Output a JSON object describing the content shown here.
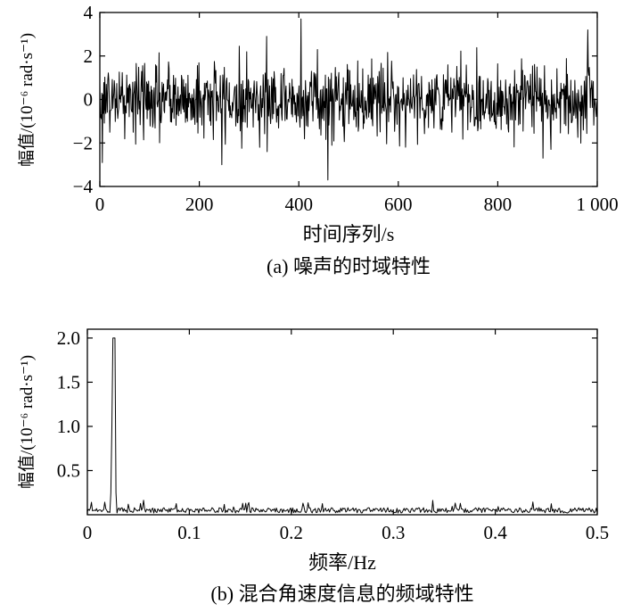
{
  "chart_data": [
    {
      "type": "line",
      "caption": "(a) 噪声的时域特性",
      "xlabel": "时间序列/s",
      "ylabel": "幅值/(10⁻⁶ rad·s⁻¹)",
      "xlim": [
        0,
        1000
      ],
      "ylim": [
        -4,
        4
      ],
      "xticks": [
        0,
        200,
        400,
        600,
        800,
        1000
      ],
      "xtick_labels": [
        "0",
        "200",
        "400",
        "600",
        "800",
        "1 000"
      ],
      "yticks": [
        -4,
        -2,
        0,
        2,
        4
      ],
      "ytick_labels": [
        "−4",
        "−2",
        "0",
        "2",
        "4"
      ],
      "grid": false,
      "series": [
        {
          "description_of_shape": "zero-mean random noise, 1000 samples, mostly within ±2.5",
          "x_start": 0,
          "x_end": 1000,
          "n_points": 1000,
          "notable_points": [
            {
              "x": 5,
              "y": -2.9
            },
            {
              "x": 245,
              "y": -3.0
            },
            {
              "x": 335,
              "y": 2.9
            },
            {
              "x": 404,
              "y": 3.7
            },
            {
              "x": 458,
              "y": -3.7
            },
            {
              "x": 890,
              "y": -2.7
            },
            {
              "x": 980,
              "y": 3.2
            }
          ]
        }
      ]
    },
    {
      "type": "line",
      "caption": "(b) 混合角速度信息的频域特性",
      "xlabel": "频率/Hz",
      "ylabel": "幅值/(10⁻⁶ rad·s⁻¹)",
      "xlim": [
        0,
        0.5
      ],
      "ylim": [
        0,
        2.1
      ],
      "xticks": [
        0,
        0.1,
        0.2,
        0.3,
        0.4,
        0.5
      ],
      "xtick_labels": [
        "0",
        "0.1",
        "0.2",
        "0.3",
        "0.4",
        "0.5"
      ],
      "yticks": [
        0.5,
        1.0,
        1.5,
        2.0
      ],
      "ytick_labels": [
        "0.5",
        "1.0",
        "1.5",
        "2.0"
      ],
      "grid": false,
      "series": [
        {
          "description_of_shape": "flat noise floor about 0.05 with a single sharp peak near 0.026 Hz",
          "peak": {
            "x": 0.026,
            "y": 2.0
          },
          "noise_floor": 0.05,
          "noise_floor_max": 0.16
        }
      ]
    }
  ]
}
